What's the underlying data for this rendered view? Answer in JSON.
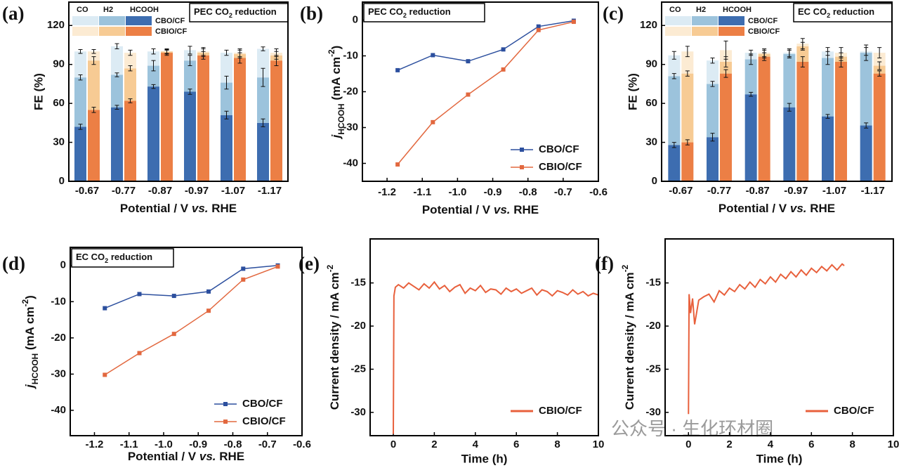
{
  "watermark": "公众号 · 生化环材圈",
  "chart_data": [
    {
      "type": "bar",
      "label": "(a)",
      "stacked": true,
      "title": [
        "PEC CO",
        "2",
        " reduction"
      ],
      "xlabel": [
        "Potential / V ",
        "vs.",
        " RHE"
      ],
      "ylabel": "FE (%)",
      "categories": [
        "-0.67",
        "-0.77",
        "-0.87",
        "-0.97",
        "-1.07",
        "-1.17"
      ],
      "ylim": [
        0,
        138
      ],
      "yticks": [
        0,
        30,
        60,
        90,
        120
      ],
      "legend": "upper left",
      "groups": [
        {
          "name": "CBO/CF",
          "series": [
            {
              "name": "HCOOH",
              "color": "#3d6db0",
              "values": [
                42,
                57,
                73,
                69,
                51,
                45
              ],
              "errors": [
                2,
                1.5,
                1.5,
                2,
                3,
                3
              ]
            },
            {
              "name": "H2",
              "color": "#9cc3dc",
              "values": [
                38,
                25,
                16,
                24,
                25,
                35
              ],
              "errors": [
                2,
                1.5,
                4,
                4,
                5,
                7
              ]
            },
            {
              "name": "CO",
              "color": "#dcebf4",
              "values": [
                20,
                22,
                11,
                8,
                23,
                22
              ],
              "errors": [
                1.5,
                2,
                2,
                3,
                2,
                1.5
              ]
            }
          ]
        },
        {
          "name": "CBIO/CF",
          "series": [
            {
              "name": "HCOOH",
              "color": "#ec7f45",
              "values": [
                55,
                62,
                99,
                97,
                95,
                93
              ],
              "errors": [
                2,
                1.5,
                2,
                3,
                4,
                4
              ]
            },
            {
              "name": "H2",
              "color": "#f7cb94",
              "values": [
                38,
                25,
                1,
                2,
                3,
                4
              ],
              "errors": [
                3,
                2,
                1.5,
                3,
                3,
                3
              ]
            },
            {
              "name": "CO",
              "color": "#fcebd3",
              "values": [
                7,
                12,
                0,
                1,
                1,
                2
              ],
              "errors": [
                1.5,
                2,
                2,
                3,
                3,
                3
              ]
            }
          ]
        }
      ]
    },
    {
      "type": "line",
      "label": "(b)",
      "title": [
        "PEC CO",
        "2",
        " reduction"
      ],
      "xlabel": [
        "Potential / V ",
        "vs.",
        " RHE"
      ],
      "ylabel": [
        "j",
        "HCOOH",
        " (mA cm",
        "-2",
        ")"
      ],
      "x": [
        -1.17,
        -1.07,
        -0.97,
        -0.87,
        -0.77,
        -0.67
      ],
      "xlim": [
        -1.27,
        -0.6
      ],
      "xticks": [
        -1.2,
        -1.1,
        {
          "value": -1,
          "label": "-1.0"
        },
        -0.9,
        -0.8,
        -0.7,
        -0.6
      ],
      "ylim": [
        -45,
        5
      ],
      "yticks": [
        0,
        -10,
        -20,
        -30,
        -40
      ],
      "legend": "lower right",
      "series": [
        {
          "name": "CBO/CF",
          "color": "#2c4f9e",
          "marker": "square",
          "values": [
            -14,
            -9.8,
            -11.5,
            -8.2,
            -1.8,
            -0.2
          ]
        },
        {
          "name": "CBIO/CF",
          "color": "#e2683f",
          "marker": "square",
          "values": [
            -40.3,
            -28.5,
            -20.8,
            -13.8,
            -2.8,
            -0.5
          ]
        }
      ]
    },
    {
      "type": "bar",
      "label": "(c)",
      "stacked": true,
      "title": [
        "EC CO",
        "2",
        " reduction"
      ],
      "xlabel": [
        "Potential / V ",
        "vs.",
        " RHE"
      ],
      "ylabel": "FE (%)",
      "categories": [
        "-0.67",
        "-0.77",
        "-0.87",
        "-0.97",
        "-1.07",
        "-1.17"
      ],
      "ylim": [
        0,
        138
      ],
      "yticks": [
        0,
        30,
        60,
        90,
        120
      ],
      "legend": "upper left",
      "groups": [
        {
          "name": "CBO/CF",
          "series": [
            {
              "name": "HCOOH",
              "color": "#3d6db0",
              "values": [
                28,
                34,
                67,
                57,
                50,
                43
              ],
              "errors": [
                2,
                3,
                1.5,
                3,
                1.5,
                2
              ]
            },
            {
              "name": "H2",
              "color": "#9cc3dc",
              "values": [
                53,
                41,
                27,
                41,
                45,
                56
              ],
              "errors": [
                2,
                2,
                4,
                3,
                5,
                6
              ]
            },
            {
              "name": "CO",
              "color": "#dcebf4",
              "values": [
                16,
                18,
                5,
                1,
                5,
                1
              ],
              "errors": [
                3,
                2,
                2,
                3,
                3,
                3
              ]
            }
          ]
        },
        {
          "name": "CBIO/CF",
          "series": [
            {
              "name": "HCOOH",
              "color": "#ec7f45",
              "values": [
                30,
                83,
                96,
                92,
                92,
                83
              ],
              "errors": [
                2,
                3,
                3,
                4,
                4,
                2
              ]
            },
            {
              "name": "H2",
              "color": "#f7cb94",
              "values": [
                53,
                9,
                2,
                12,
                4,
                6
              ],
              "errors": [
                2,
                4,
                3,
                3,
                3,
                3
              ]
            },
            {
              "name": "CO",
              "color": "#fcebd3",
              "values": [
                17,
                9,
                1,
                2,
                3,
                10
              ],
              "errors": [
                4,
                7,
                3,
                4,
                4,
                4
              ]
            }
          ]
        }
      ]
    },
    {
      "type": "line",
      "label": "(d)",
      "title": [
        "EC CO",
        "2",
        " reduction"
      ],
      "xlabel": [
        "Potential / V ",
        "vs.",
        " RHE"
      ],
      "ylabel": [
        "j",
        "HCOOH",
        " (mA cm",
        "-2",
        ")"
      ],
      "x": [
        -1.17,
        -1.07,
        -0.97,
        -0.87,
        -0.77,
        -0.67
      ],
      "xlim": [
        -1.27,
        -0.6
      ],
      "xticks": [
        -1.2,
        -1.1,
        {
          "value": -1,
          "label": "-1.0"
        },
        -0.9,
        -0.8,
        -0.7,
        -0.6
      ],
      "ylim": [
        -47,
        5
      ],
      "yticks": [
        0,
        -10,
        -20,
        -30,
        -40
      ],
      "legend": "lower right",
      "series": [
        {
          "name": "CBO/CF",
          "color": "#2c4f9e",
          "marker": "square",
          "values": [
            -11.8,
            -7.9,
            -8.4,
            -7.2,
            -0.9,
            0
          ]
        },
        {
          "name": "CBIO/CF",
          "color": "#e2683f",
          "marker": "square",
          "values": [
            -30.2,
            -24.2,
            -18.9,
            -12.5,
            -3.9,
            -0.3
          ]
        }
      ]
    },
    {
      "type": "line",
      "label": "(e)",
      "xlabel": "Time (h)",
      "ylabel": [
        "Current density / mA cm",
        "-2"
      ],
      "x": [
        0,
        0.03,
        0.1,
        0.25,
        0.5,
        0.75,
        1,
        1.25,
        1.5,
        1.75,
        2,
        2.25,
        2.5,
        2.75,
        3,
        3.25,
        3.5,
        3.75,
        4,
        4.25,
        4.5,
        4.75,
        5,
        5.25,
        5.5,
        5.75,
        6,
        6.25,
        6.5,
        6.75,
        7,
        7.25,
        7.5,
        7.75,
        8,
        8.25,
        8.5,
        8.75,
        9,
        9.25,
        9.5,
        9.75,
        10
      ],
      "xlim": [
        -1.13,
        10
      ],
      "xticks": [
        0,
        2,
        4,
        6,
        8,
        10
      ],
      "ylim": [
        -32.7,
        -9.9
      ],
      "yticks": [
        -15,
        -20,
        -25,
        -30
      ],
      "legend": "lower right",
      "series": [
        {
          "name": "CBIO/CF",
          "color": "#e8603c",
          "values": [
            -32.5,
            -16.5,
            -15.5,
            -15.2,
            -15.6,
            -15.0,
            -15.4,
            -15.8,
            -15.1,
            -15.6,
            -14.9,
            -15.7,
            -15.3,
            -16.0,
            -15.5,
            -15.2,
            -16.2,
            -15.6,
            -15.9,
            -15.3,
            -16.1,
            -15.7,
            -15.8,
            -16.3,
            -15.6,
            -16.0,
            -15.7,
            -16.2,
            -15.9,
            -15.6,
            -16.4,
            -15.8,
            -16.0,
            -16.5,
            -15.9,
            -16.1,
            -16.4,
            -15.8,
            -16.3,
            -16.0,
            -16.5,
            -16.2,
            -16.4
          ]
        }
      ]
    },
    {
      "type": "line",
      "label": "(f)",
      "xlabel": "Time (h)",
      "ylabel": [
        "Current density / mA cm",
        "-2"
      ],
      "x": [
        0,
        0.03,
        0.1,
        0.2,
        0.3,
        0.5,
        0.75,
        1,
        1.25,
        1.5,
        1.75,
        2,
        2.25,
        2.5,
        2.75,
        3,
        3.25,
        3.5,
        3.75,
        4,
        4.25,
        4.5,
        4.75,
        5,
        5.25,
        5.5,
        5.75,
        6,
        6.25,
        6.5,
        6.75,
        7,
        7.25,
        7.5,
        7.6
      ],
      "xlim": [
        -1.14,
        10
      ],
      "xticks": [
        0,
        2,
        4,
        6,
        8,
        10
      ],
      "ylim": [
        -32.7,
        -9.9
      ],
      "yticks": [
        -15,
        -20,
        -25,
        -30
      ],
      "legend": "lower right",
      "series": [
        {
          "name": "CBO/CF",
          "color": "#e8603c",
          "values": [
            -30.2,
            -16.3,
            -18.5,
            -16.8,
            -19.8,
            -17.0,
            -16.6,
            -16.3,
            -17.2,
            -15.9,
            -16.4,
            -15.6,
            -16.0,
            -15.2,
            -15.7,
            -14.9,
            -15.5,
            -14.6,
            -15.1,
            -14.3,
            -14.9,
            -14.0,
            -14.5,
            -13.7,
            -14.3,
            -13.5,
            -14.1,
            -13.3,
            -13.8,
            -13.1,
            -13.6,
            -12.9,
            -13.5,
            -12.8,
            -13.0
          ]
        }
      ]
    }
  ]
}
